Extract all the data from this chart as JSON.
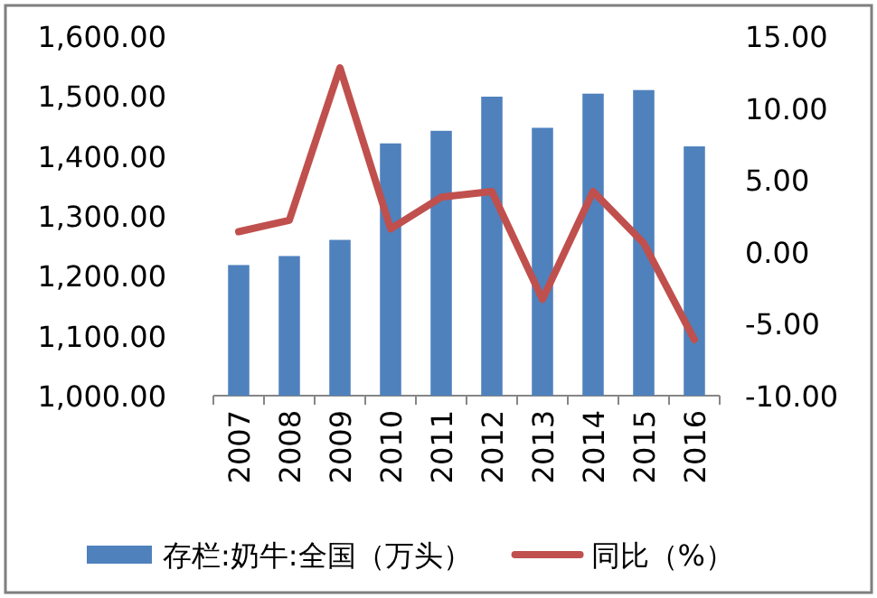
{
  "chart_data": {
    "type": "bar",
    "categories": [
      "2007",
      "2008",
      "2009",
      "2010",
      "2011",
      "2012",
      "2013",
      "2014",
      "2015",
      "2016"
    ],
    "series": [
      {
        "name": "存栏:奶牛:全国（万头）",
        "color": "#4f81bd",
        "values": [
          1218,
          1233,
          1260,
          1421,
          1442,
          1499,
          1447,
          1504,
          1510,
          1416
        ]
      },
      {
        "name": "同比（%）",
        "type": "line",
        "axis": "y2",
        "color": "#c0504d",
        "values": [
          1.4,
          2.2,
          12.8,
          1.6,
          3.8,
          4.2,
          -3.3,
          4.2,
          0.6,
          -6.1
        ]
      }
    ],
    "ylim": [
      1000,
      1600
    ],
    "yticks": [
      {
        "value": 1000,
        "label": "1,000.00"
      },
      {
        "value": 1100,
        "label": "1,100.00"
      },
      {
        "value": 1200,
        "label": "1,200.00"
      },
      {
        "value": 1300,
        "label": "1,300.00"
      },
      {
        "value": 1400,
        "label": "1,400.00"
      },
      {
        "value": 1500,
        "label": "1,500.00"
      },
      {
        "value": 1600,
        "label": "1,600.00"
      }
    ],
    "y2lim": [
      -10,
      15
    ],
    "y2ticks": [
      {
        "value": -10,
        "label": "-10.00"
      },
      {
        "value": -5,
        "label": "-5.00"
      },
      {
        "value": 0,
        "label": "0.00"
      },
      {
        "value": 5,
        "label": "5.00"
      },
      {
        "value": 10,
        "label": "10.00"
      },
      {
        "value": 15,
        "label": "15.00"
      }
    ],
    "legend": "bottom"
  }
}
